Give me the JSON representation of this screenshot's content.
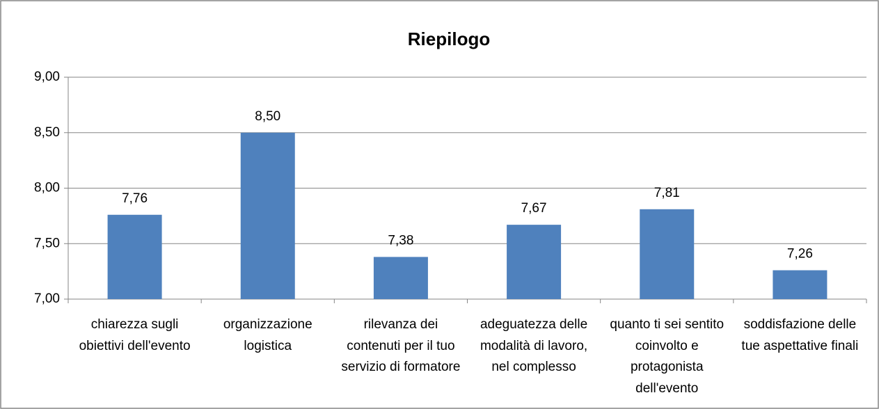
{
  "chart_data": {
    "type": "bar",
    "title": "Riepilogo",
    "categories": [
      "chiarezza sugli obiettivi dell'evento",
      "organizzazione logistica",
      "rilevanza dei contenuti per il tuo servizio di formatore",
      "adeguatezza delle modalità di lavoro, nel complesso",
      "quanto ti sei sentito coinvolto e protagonista dell'evento",
      "soddisfazione delle tue aspettative finali"
    ],
    "values": [
      7.76,
      8.5,
      7.38,
      7.67,
      7.81,
      7.26
    ],
    "value_labels": [
      "7,76",
      "8,50",
      "7,38",
      "7,67",
      "7,81",
      "7,26"
    ],
    "color": "#4f81bd",
    "ylim": [
      7,
      9
    ],
    "yticks": [
      {
        "value": 7,
        "label": "7,00"
      },
      {
        "value": 7.5,
        "label": "7,50"
      },
      {
        "value": 8,
        "label": "8,00"
      },
      {
        "value": 8.5,
        "label": "8,50"
      },
      {
        "value": 9,
        "label": "9,00"
      }
    ],
    "grid": true
  }
}
